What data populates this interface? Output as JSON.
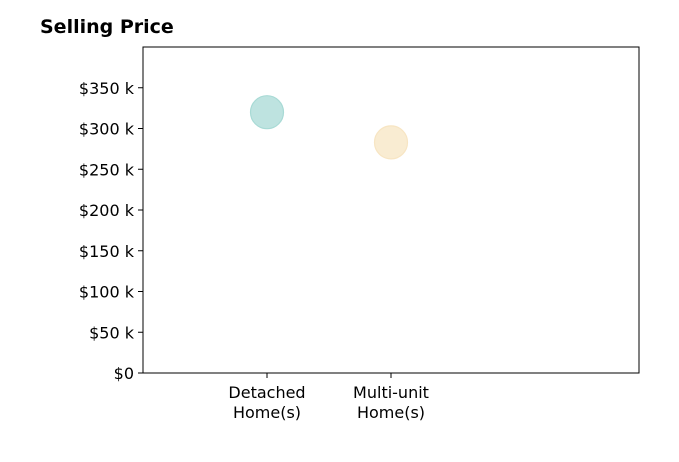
{
  "chart_data": {
    "type": "scatter",
    "title": "Selling Price",
    "categories": [
      "Detached\nHome(s)",
      "Multi-unit\nHome(s)"
    ],
    "values": [
      320000,
      283000
    ],
    "colors": [
      "#a8dad5",
      "#f7e5c3"
    ],
    "ylim": [
      0,
      400000
    ],
    "yticks": [
      0,
      50000,
      100000,
      150000,
      200000,
      250000,
      300000,
      350000
    ],
    "ytick_labels": [
      "$0",
      "$50 k",
      "$100 k",
      "$150 k",
      "$200 k",
      "$250 k",
      "$300 k",
      "$350 k"
    ],
    "grid": false,
    "legend": "none"
  }
}
